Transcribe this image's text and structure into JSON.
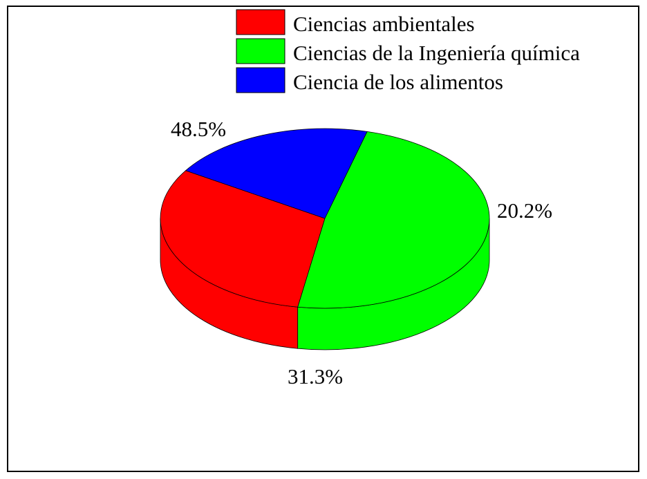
{
  "chart_data": {
    "type": "pie",
    "style": "3d",
    "legend_position": "top-right",
    "categories": [
      "Ciencias ambientales",
      "Ciencias de la Ingeniería química",
      "Ciencia de los alimentos"
    ],
    "values": [
      31.3,
      48.5,
      20.2
    ],
    "labels": [
      "31.3%",
      "48.5%",
      "20.2%"
    ],
    "colors": [
      "#ff0000",
      "#00ff00",
      "#0000ff"
    ]
  }
}
